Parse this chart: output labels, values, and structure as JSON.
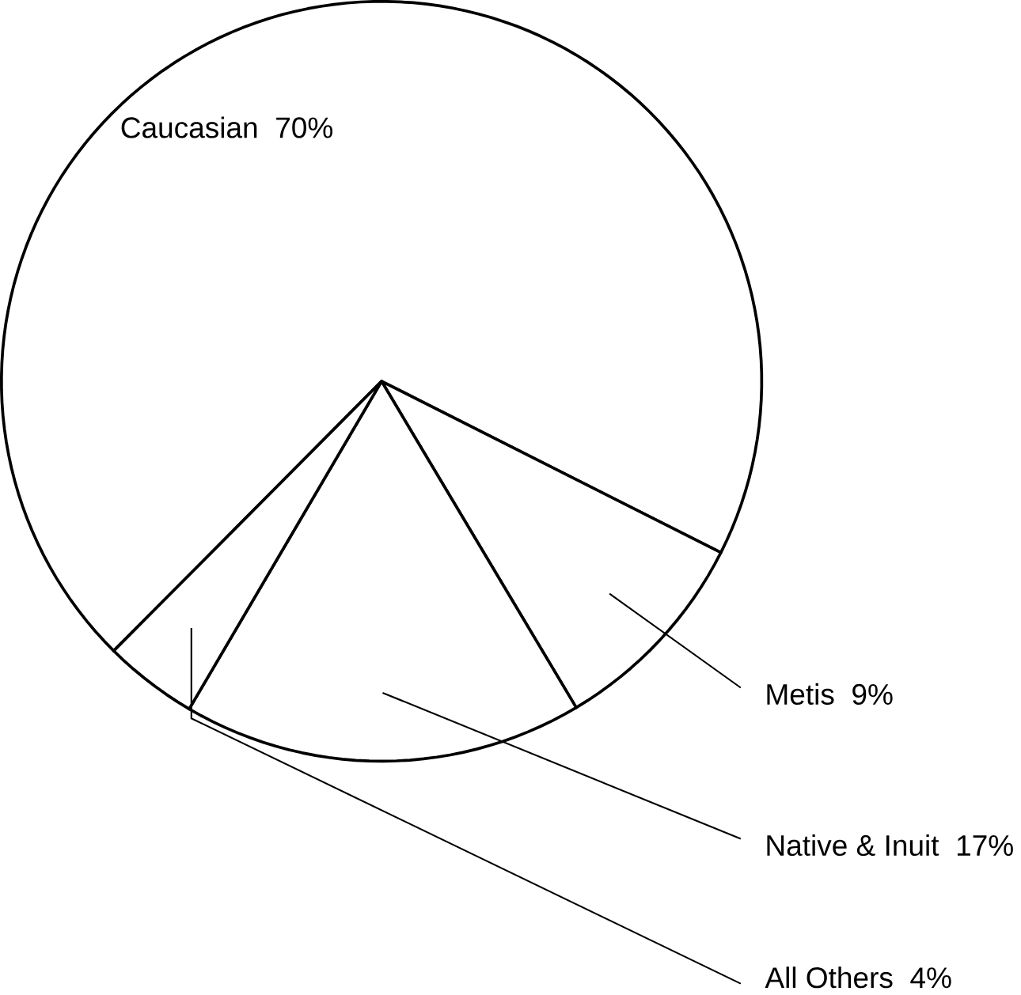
{
  "chart_data": {
    "type": "pie",
    "categories": [
      "Caucasian",
      "Metis",
      "Native & Inuit",
      "All Others"
    ],
    "values": [
      70,
      9,
      17,
      4
    ],
    "colors": [
      "#ffffff",
      "#ffffff",
      "#ffffff",
      "#ffffff"
    ],
    "value_labels": [
      "70%",
      "9%",
      "17%",
      "4%"
    ]
  }
}
